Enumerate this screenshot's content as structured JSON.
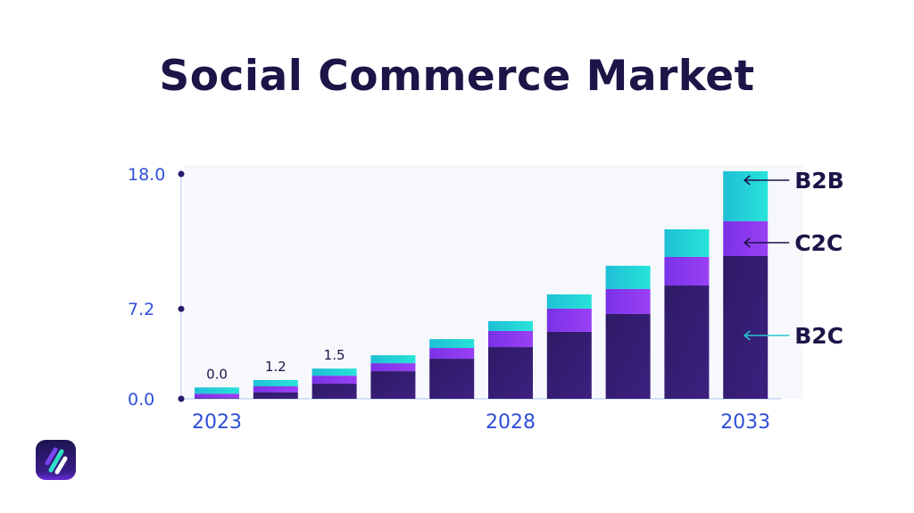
{
  "title": "Social Commerce Market",
  "chart_data": {
    "type": "bar",
    "stacked": true,
    "title": "Social Commerce Market",
    "xlabel": "",
    "ylabel": "",
    "categories": [
      "2023",
      "",
      "",
      "",
      "",
      "2028",
      "",
      "",
      "",
      "2033"
    ],
    "ylim": [
      0,
      18
    ],
    "y_ticks": [
      "0.0",
      "7.2",
      "18.0"
    ],
    "y_tick_values": [
      0,
      7.2,
      18
    ],
    "grid": false,
    "series": [
      {
        "name": "B2C",
        "color": "#33206e",
        "values": [
          0.05,
          0.5,
          1.21,
          2.21,
          3.21,
          4.14,
          5.36,
          6.79,
          9.07,
          11.43
        ]
      },
      {
        "name": "C2C",
        "color": "#8a3cf0",
        "values": [
          0.36,
          0.5,
          0.64,
          0.64,
          0.86,
          1.29,
          1.86,
          2.0,
          2.29,
          2.79
        ]
      },
      {
        "name": "B2B",
        "color": "#22d3d8",
        "values": [
          0.5,
          0.5,
          0.57,
          0.64,
          0.71,
          0.79,
          1.14,
          1.86,
          2.21,
          4.0
        ]
      }
    ],
    "data_labels": [
      "0.0",
      "1.2",
      "1.5",
      "",
      "",
      "",
      "",
      "",
      "",
      ""
    ],
    "legend": "right, arrows pointing into last bar",
    "colors": {
      "axis_text": "#2f4fd8",
      "axis_line": "#c9d8f5",
      "tick_dot": "#2a1a6e",
      "plot_bg": "#f6f8fc",
      "label_text": "#1b1548"
    }
  },
  "logo": {
    "name": "brand-logo"
  }
}
